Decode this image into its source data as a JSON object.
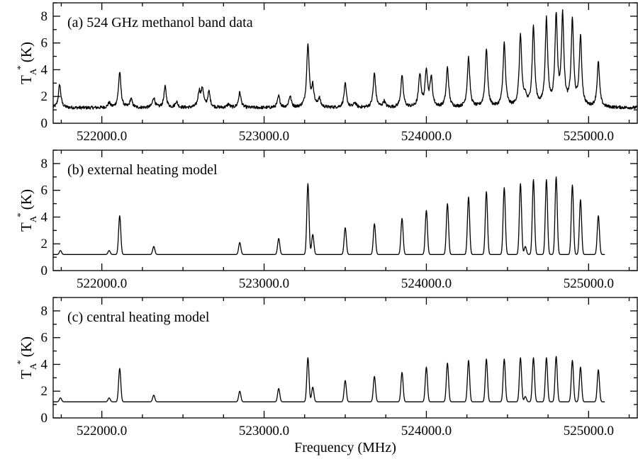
{
  "chart_data": [
    {
      "type": "line",
      "id": "a",
      "title": "(a) 524 GHz methanol band data",
      "ylabel": {
        "main": "T",
        "sub": "A",
        "sup": "*",
        "unit": "(K)"
      },
      "xlabel": "",
      "xlim": [
        521700,
        525300
      ],
      "ylim": [
        0,
        9
      ],
      "xticks": [
        522000,
        523000,
        524000,
        525000
      ],
      "xtick_labels": [
        "522000.0",
        "523000.0",
        "524000.0",
        "525000.0"
      ],
      "yticks": [
        0,
        2,
        4,
        6,
        8
      ],
      "ytick_labels": [
        "0",
        "2",
        "4",
        "6",
        "8"
      ],
      "baseline": 1.15,
      "noise": 0.12,
      "lines": [
        [
          521740,
          2.9
        ],
        [
          522045,
          1.5
        ],
        [
          522110,
          3.8
        ],
        [
          522180,
          1.8
        ],
        [
          522320,
          1.9
        ],
        [
          522390,
          2.7
        ],
        [
          522460,
          1.6
        ],
        [
          522600,
          2.3
        ],
        [
          522620,
          2.5
        ],
        [
          522660,
          2.3
        ],
        [
          522780,
          1.4
        ],
        [
          522850,
          2.3
        ],
        [
          523090,
          2.0
        ],
        [
          523160,
          2.0
        ],
        [
          523270,
          5.9
        ],
        [
          523300,
          2.6
        ],
        [
          523340,
          1.8
        ],
        [
          523500,
          2.9
        ],
        [
          523560,
          1.5
        ],
        [
          523680,
          3.7
        ],
        [
          523740,
          1.6
        ],
        [
          523850,
          3.5
        ],
        [
          523960,
          3.6
        ],
        [
          524000,
          3.9
        ],
        [
          524030,
          3.3
        ],
        [
          524130,
          4.1
        ],
        [
          524260,
          4.9
        ],
        [
          524370,
          5.5
        ],
        [
          524480,
          5.9
        ],
        [
          524580,
          6.5
        ],
        [
          524610,
          1.8
        ],
        [
          524660,
          7.1
        ],
        [
          524740,
          7.6
        ],
        [
          524800,
          7.8
        ],
        [
          524840,
          7.8
        ],
        [
          524900,
          7.5
        ],
        [
          524950,
          6.3
        ],
        [
          525060,
          4.5
        ]
      ]
    },
    {
      "type": "line",
      "id": "b",
      "title": "(b) external heating model",
      "ylabel": {
        "main": "T",
        "sub": "A",
        "sup": "*",
        "unit": "(K)"
      },
      "xlabel": "",
      "xlim": [
        521700,
        525300
      ],
      "ylim": [
        0,
        9
      ],
      "xticks": [
        522000,
        523000,
        524000,
        525000
      ],
      "xtick_labels": [
        "522000.0",
        "523000.0",
        "524000.0",
        "525000.0"
      ],
      "yticks": [
        0,
        2,
        4,
        6,
        8
      ],
      "ytick_labels": [
        "0",
        "2",
        "4",
        "6",
        "8"
      ],
      "baseline": 1.2,
      "noise": 0,
      "lines": [
        [
          521745,
          1.5
        ],
        [
          522045,
          1.5
        ],
        [
          522110,
          4.1
        ],
        [
          522320,
          1.8
        ],
        [
          522850,
          2.1
        ],
        [
          523090,
          2.4
        ],
        [
          523270,
          6.5
        ],
        [
          523300,
          2.7
        ],
        [
          523500,
          3.2
        ],
        [
          523680,
          3.5
        ],
        [
          523850,
          3.9
        ],
        [
          524000,
          4.5
        ],
        [
          524130,
          5.0
        ],
        [
          524260,
          5.5
        ],
        [
          524370,
          5.9
        ],
        [
          524480,
          6.2
        ],
        [
          524580,
          6.5
        ],
        [
          524610,
          1.8
        ],
        [
          524660,
          6.8
        ],
        [
          524740,
          6.8
        ],
        [
          524800,
          7.0
        ],
        [
          524900,
          6.4
        ],
        [
          524950,
          5.3
        ],
        [
          525060,
          4.1
        ]
      ]
    },
    {
      "type": "line",
      "id": "c",
      "title": "(c) central heating model",
      "ylabel": {
        "main": "T",
        "sub": "A",
        "sup": "*",
        "unit": "(K)"
      },
      "xlabel": "Frequency (MHz)",
      "xlim": [
        521700,
        525300
      ],
      "ylim": [
        0,
        9
      ],
      "xticks": [
        522000,
        523000,
        524000,
        525000
      ],
      "xtick_labels": [
        "522000.0",
        "523000.0",
        "524000.0",
        "525000.0"
      ],
      "yticks": [
        0,
        2,
        4,
        6,
        8
      ],
      "ytick_labels": [
        "0",
        "2",
        "4",
        "6",
        "8"
      ],
      "baseline": 1.2,
      "noise": 0,
      "lines": [
        [
          521745,
          1.5
        ],
        [
          522045,
          1.5
        ],
        [
          522110,
          3.7
        ],
        [
          522320,
          1.7
        ],
        [
          522850,
          2.0
        ],
        [
          523090,
          2.2
        ],
        [
          523270,
          4.5
        ],
        [
          523300,
          2.3
        ],
        [
          523500,
          2.8
        ],
        [
          523680,
          3.1
        ],
        [
          523850,
          3.4
        ],
        [
          524000,
          3.8
        ],
        [
          524130,
          4.1
        ],
        [
          524260,
          4.3
        ],
        [
          524370,
          4.4
        ],
        [
          524480,
          4.4
        ],
        [
          524580,
          4.5
        ],
        [
          524610,
          1.6
        ],
        [
          524660,
          4.5
        ],
        [
          524740,
          4.5
        ],
        [
          524800,
          4.6
        ],
        [
          524900,
          4.3
        ],
        [
          524950,
          3.8
        ],
        [
          525060,
          3.6
        ]
      ]
    }
  ]
}
